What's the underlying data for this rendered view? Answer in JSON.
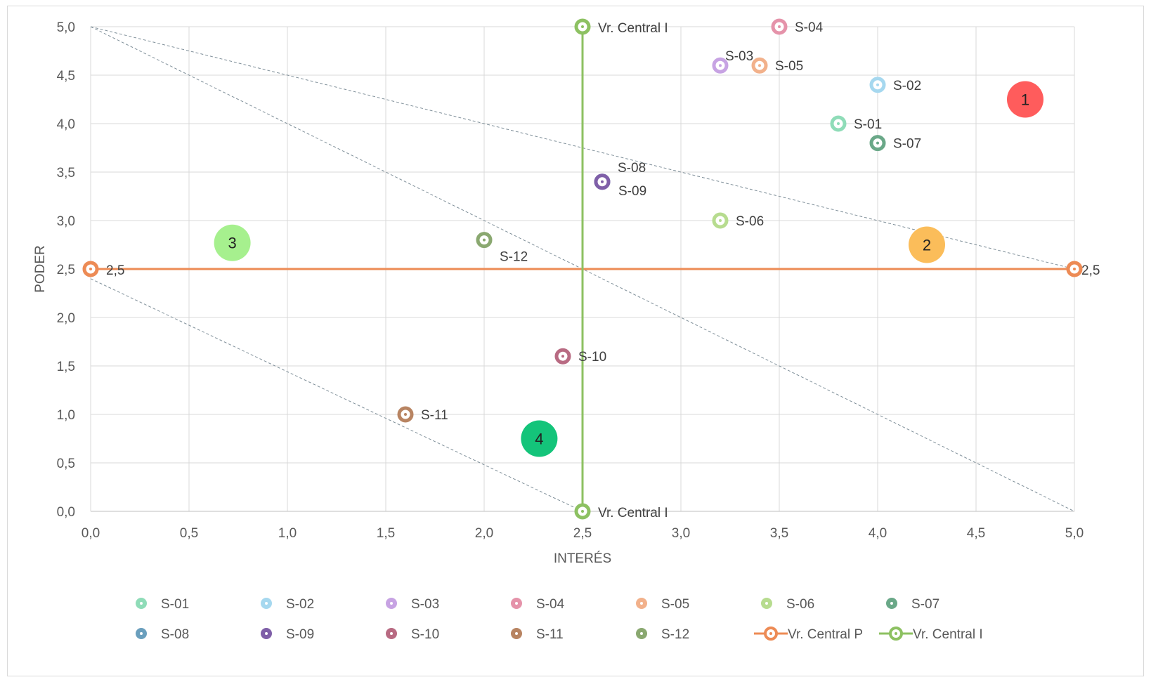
{
  "chart_data": {
    "type": "scatter",
    "title": "",
    "xlabel": "INTERÉS",
    "ylabel": "PODER",
    "xlim": [
      0,
      5
    ],
    "ylim": [
      0,
      5
    ],
    "x_ticks": [
      "0,0",
      "0,5",
      "1,0",
      "1,5",
      "2,0",
      "2,5",
      "3,0",
      "3,5",
      "4,0",
      "4,5",
      "5,0"
    ],
    "y_ticks": [
      "0,0",
      "0,5",
      "1,0",
      "1,5",
      "2,0",
      "2,5",
      "3,0",
      "3,5",
      "4,0",
      "4,5",
      "5,0"
    ],
    "grid": true,
    "legend_position": "bottom",
    "series": [
      {
        "name": "S-01",
        "x": 3.8,
        "y": 4.0,
        "label": "S-01",
        "color": "#8fdcb8"
      },
      {
        "name": "S-02",
        "x": 4.0,
        "y": 4.4,
        "label": "S-02",
        "color": "#a6d8ef"
      },
      {
        "name": "S-03",
        "x": 3.2,
        "y": 4.6,
        "label": "S-03",
        "color": "#c7a3e3"
      },
      {
        "name": "S-04",
        "x": 3.5,
        "y": 5.0,
        "label": "S-04",
        "color": "#e593aa"
      },
      {
        "name": "S-05",
        "x": 3.4,
        "y": 4.6,
        "label": "S-05",
        "color": "#f2b18b"
      },
      {
        "name": "S-06",
        "x": 3.2,
        "y": 3.0,
        "label": "S-06",
        "color": "#b7dc8f"
      },
      {
        "name": "S-07",
        "x": 4.0,
        "y": 3.8,
        "label": "S-07",
        "color": "#6aa888"
      },
      {
        "name": "S-08",
        "x": 2.6,
        "y": 3.4,
        "label": "S-08",
        "color": "#6a9fbd"
      },
      {
        "name": "S-09",
        "x": 2.6,
        "y": 3.4,
        "label": "S-09",
        "color": "#7f5fa8"
      },
      {
        "name": "S-10",
        "x": 2.4,
        "y": 1.6,
        "label": "S-10",
        "color": "#b86a82"
      },
      {
        "name": "S-11",
        "x": 1.6,
        "y": 1.0,
        "label": "S-11",
        "color": "#b88462"
      },
      {
        "name": "S-12",
        "x": 2.0,
        "y": 2.8,
        "label": "S-12",
        "color": "#8aa870"
      }
    ],
    "lines": [
      {
        "name": "Vr. Central P",
        "color": "#ed8b55",
        "points": [
          {
            "x": 0,
            "y": 2.5,
            "label": "2,5"
          },
          {
            "x": 5,
            "y": 2.5,
            "label": "2,5"
          }
        ]
      },
      {
        "name": "Vr. Central I",
        "color": "#8dc162",
        "points": [
          {
            "x": 2.5,
            "y": 5,
            "label": "Vr. Central I"
          },
          {
            "x": 2.5,
            "y": 0,
            "label": "Vr. Central I"
          }
        ]
      }
    ],
    "diagonals": [
      {
        "from": [
          0,
          5
        ],
        "to": [
          5,
          2.5
        ]
      },
      {
        "from": [
          0,
          5
        ],
        "to": [
          5,
          0
        ]
      },
      {
        "from": [
          0,
          2.4
        ],
        "to": [
          2.5,
          0
        ]
      }
    ],
    "zones": [
      {
        "label": "1",
        "x": 4.75,
        "y": 4.25,
        "color": "#ff5c5c"
      },
      {
        "label": "2",
        "x": 4.25,
        "y": 2.75,
        "color": "#fbbd5a"
      },
      {
        "label": "3",
        "x": 0.72,
        "y": 2.77,
        "color": "#a6f08e"
      },
      {
        "label": "4",
        "x": 2.28,
        "y": 0.75,
        "color": "#14c47a"
      }
    ]
  }
}
